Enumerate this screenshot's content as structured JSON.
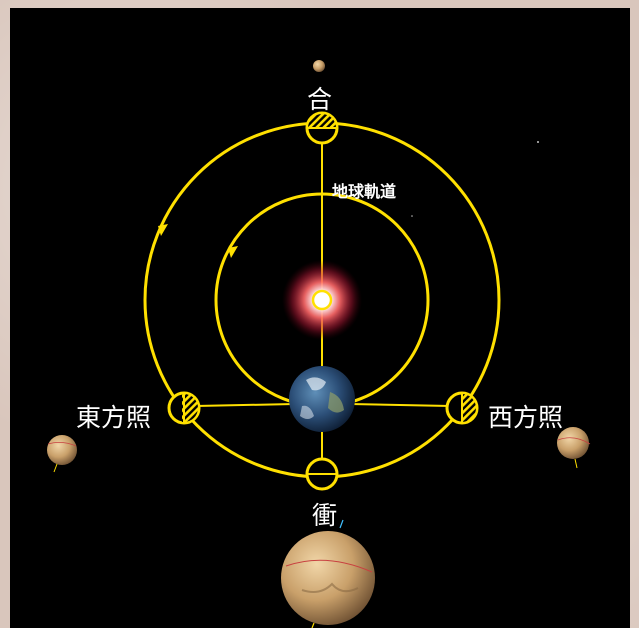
{
  "labels": {
    "conjunction": "合",
    "earth_orbit": "地球軌道",
    "eastern_quadrature": "東方照",
    "western_quadrature": "西方照",
    "opposition": "衝"
  },
  "colors": {
    "orbit": "#ffe000",
    "background": "#000000",
    "frame": "#d9c6bc"
  }
}
